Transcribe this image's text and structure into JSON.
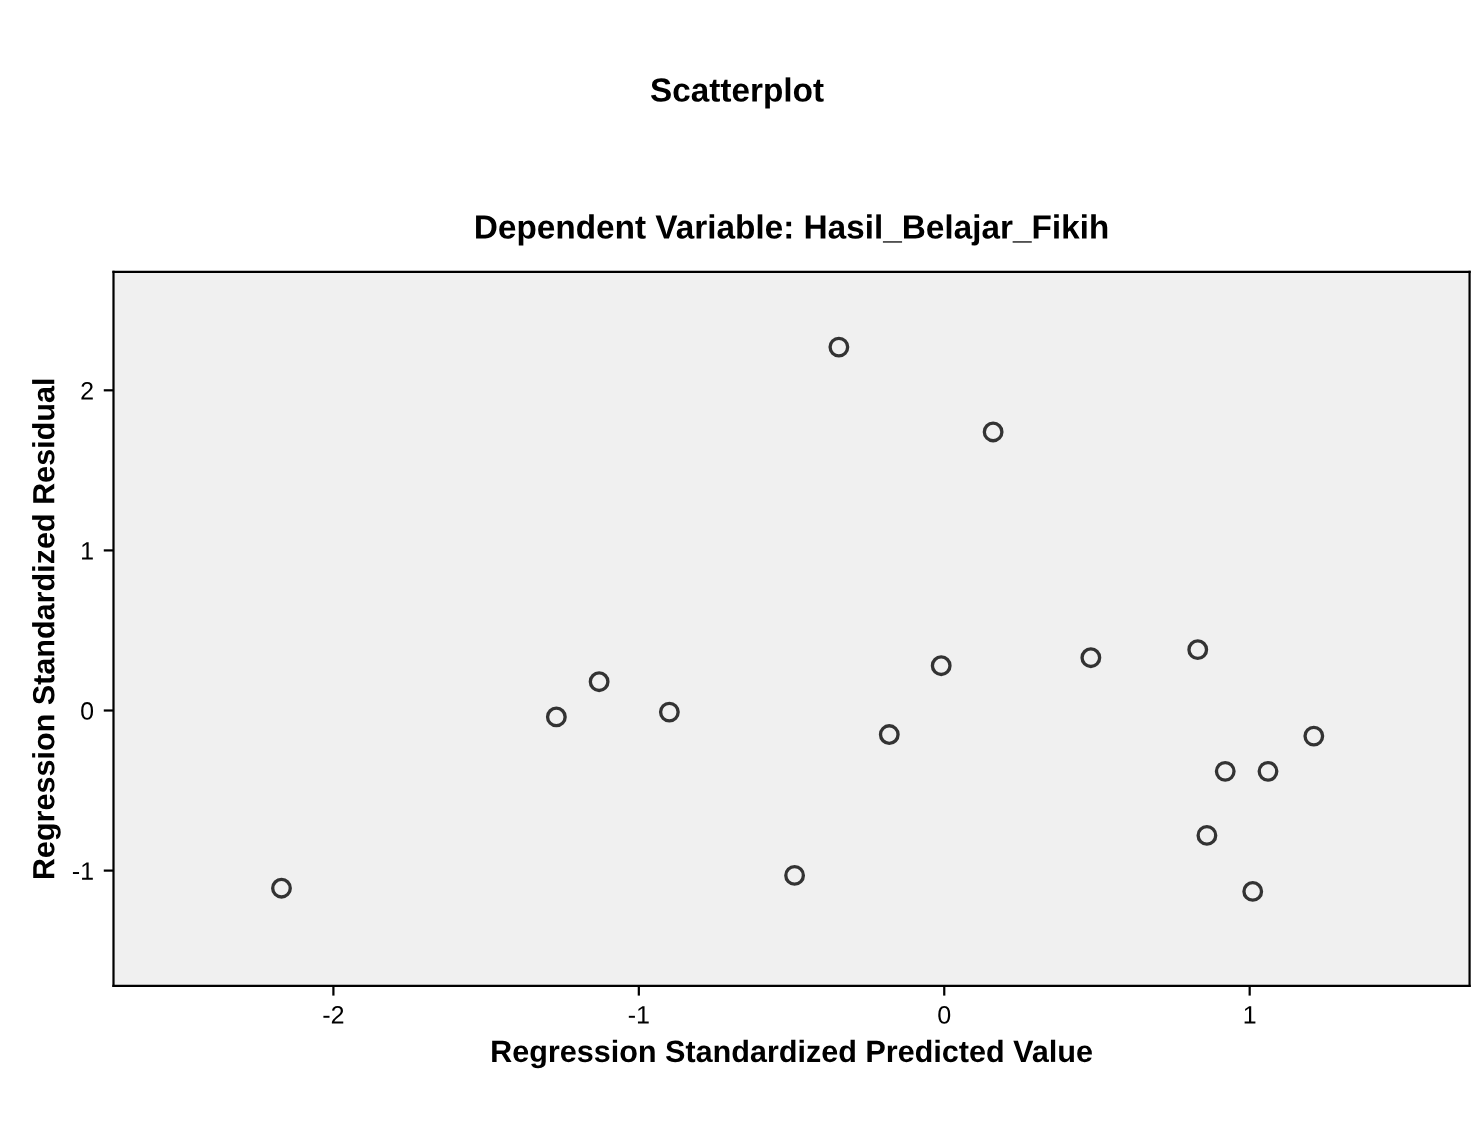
{
  "chart_data": {
    "type": "scatter",
    "title": "Scatterplot",
    "subtitle": "Dependent Variable: Hasil_Belajar_Fikih",
    "xlabel": "Regression Standardized Predicted Value",
    "ylabel": "Regression Standardized Residual",
    "x": [
      -0.345,
      0.16,
      -1.27,
      -1.13,
      -0.9,
      -0.18,
      -0.01,
      0.48,
      0.83,
      1.21,
      0.92,
      1.06,
      0.86,
      1.01,
      -0.49,
      -2.17
    ],
    "values": [
      2.27,
      1.74,
      -0.04,
      0.18,
      -0.01,
      -0.15,
      0.28,
      0.33,
      0.38,
      -0.16,
      -0.38,
      -0.38,
      -0.78,
      -1.13,
      -1.03,
      -1.11
    ],
    "color": "#333333",
    "marker": "circle",
    "xlim": [
      -2.72,
      1.72
    ],
    "ylim": [
      -1.72,
      2.74
    ],
    "xticks": [
      -2,
      -1,
      0,
      1
    ],
    "yticks": [
      -1,
      0,
      1,
      2
    ],
    "grid": false,
    "legend": false
  }
}
